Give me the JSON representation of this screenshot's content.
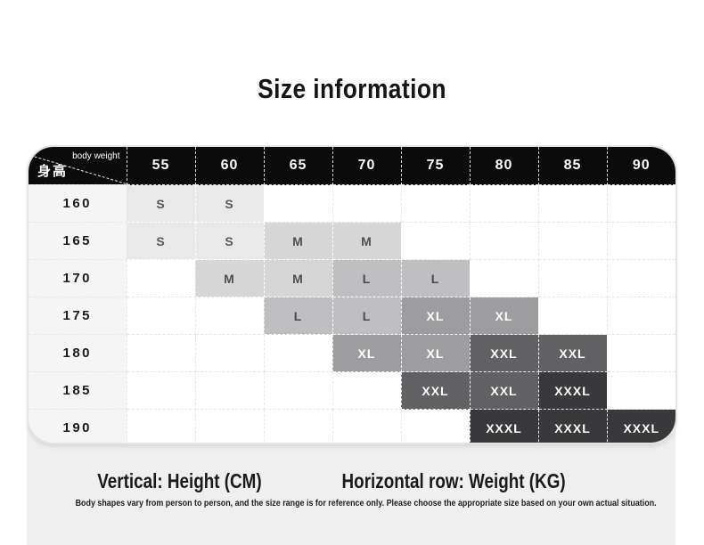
{
  "title": "Size information",
  "table": {
    "corner": {
      "top_label": "body weight",
      "side_label": "身高"
    },
    "weight_columns": [
      "55",
      "60",
      "65",
      "70",
      "75",
      "80",
      "85",
      "90"
    ],
    "rows": [
      {
        "height": "160",
        "cells": [
          "S",
          "S",
          "",
          "",
          "",
          "",
          "",
          ""
        ]
      },
      {
        "height": "165",
        "cells": [
          "S",
          "S",
          "M",
          "M",
          "",
          "",
          "",
          ""
        ]
      },
      {
        "height": "170",
        "cells": [
          "",
          "M",
          "M",
          "L",
          "L",
          "",
          "",
          ""
        ]
      },
      {
        "height": "175",
        "cells": [
          "",
          "",
          "L",
          "L",
          "XL",
          "XL",
          "",
          ""
        ]
      },
      {
        "height": "180",
        "cells": [
          "",
          "",
          "",
          "XL",
          "XL",
          "XXL",
          "XXL",
          ""
        ]
      },
      {
        "height": "185",
        "cells": [
          "",
          "",
          "",
          "",
          "XXL",
          "XXL",
          "XXXL",
          ""
        ]
      },
      {
        "height": "190",
        "cells": [
          "",
          "",
          "",
          "",
          "",
          "XXXL",
          "XXXL",
          "XXXL"
        ]
      }
    ],
    "size_colors": {
      "S": {
        "bg": "#e9e9ea",
        "text": "#58585a"
      },
      "M": {
        "bg": "#d6d6d7",
        "text": "#505052"
      },
      "L": {
        "bg": "#bfbfc1",
        "text": "#4a4a4c"
      },
      "XL": {
        "bg": "#9d9d9f",
        "text": "#ffffff"
      },
      "XXL": {
        "bg": "#616163",
        "text": "#ffffff"
      },
      "XXXL": {
        "bg": "#39393b",
        "text": "#ffffff"
      }
    },
    "header_bg": "#0b0b0c",
    "height_col_bg": "#f5f5f6"
  },
  "footer": {
    "legend_vertical": "Vertical: Height (CM)",
    "legend_horizontal": "Horizontal row: Weight (KG)",
    "disclaimer": "Body shapes vary from person to person, and the size range is for reference only. Please choose the appropriate size based on your own actual situation.",
    "bg": "#efefef"
  }
}
